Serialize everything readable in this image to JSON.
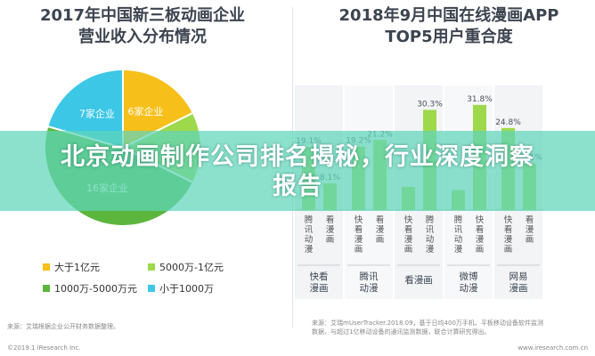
{
  "banner": {
    "line1": "北京动画制作公司排名揭秘，行业深度洞察",
    "line2": "报告"
  },
  "left_title": {
    "line1": "2017年中国新三板动画企业",
    "line2": "营业收入分布情况"
  },
  "right_title": {
    "line1": "2018年9月中国在线漫画APP",
    "line2": "TOP5用户重合度"
  },
  "colors": {
    "c1": "#f6bf1a",
    "c2": "#9ed84b",
    "c3": "#5cb63d",
    "c4": "#3cc7e6"
  },
  "chart_data": [
    {
      "type": "pie",
      "title": "2017年中国新三板动画企业营业收入分布情况",
      "slices": [
        {
          "name": "大于1亿元",
          "label": "6家企业",
          "value": 6,
          "color": "#f6bf1a"
        },
        {
          "name": "5000万-1亿元",
          "label": "",
          "value": 5,
          "color": "#9ed84b"
        },
        {
          "name": "1000万-5000万元",
          "label": "16家企业",
          "value": 16,
          "color": "#5cb63d"
        },
        {
          "name": "小于1000万",
          "label": "7家企业",
          "value": 7,
          "color": "#3cc7e6"
        }
      ],
      "legend": [
        "大于1亿元",
        "5000万-1亿元",
        "1000万-5000万元",
        "小于1000万"
      ],
      "legend_position": "bottom"
    },
    {
      "type": "bar",
      "title": "2018年9月中国在线漫画APP TOP5用户重合度",
      "groups": [
        {
          "name": "快看漫画",
          "bars": [
            {
              "label": "腾讯动漫",
              "value": 19.1,
              "color": "#9ed84b"
            },
            {
              "label": "看漫画",
              "value": 8.1,
              "color": "#9ed84b"
            }
          ]
        },
        {
          "name": "腾讯动漫",
          "bars": [
            {
              "label": "快看漫画",
              "value": 19.2,
              "color": "#9ed84b"
            },
            {
              "label": "看漫画",
              "value": 21.2,
              "color": "#9ed84b"
            }
          ]
        },
        {
          "name": "看漫画",
          "bars": [
            {
              "label": "快看漫画",
              "value": 7.0,
              "color": "#9ed84b"
            },
            {
              "label": "腾讯动漫",
              "value": 30.3,
              "color": "#9ed84b"
            }
          ]
        },
        {
          "name": "微博动漫",
          "bars": [
            {
              "label": "腾讯动漫",
              "value": 6.0,
              "color": "#9ed84b"
            },
            {
              "label": "快看漫画",
              "value": 31.8,
              "color": "#9ed84b"
            }
          ]
        },
        {
          "name": "网易漫画",
          "bars": [
            {
              "label": "快看漫画",
              "value": 24.8,
              "color": "#9ed84b"
            },
            {
              "label": "看漫画",
              "value": 14.1,
              "color": "#9ed84b"
            }
          ]
        }
      ],
      "value_labels": [
        "19.1%",
        "8.1%",
        "19.2%",
        "21.2%",
        "",
        "30.3%",
        "",
        "31.8%",
        "24.8%",
        "14.1%"
      ],
      "ylim": [
        0,
        35
      ]
    }
  ],
  "sources": {
    "left": "来源：艾瑞根据企业公开财务数据整理。",
    "right_line1": "来源：艾瑞mUserTracker.2018.09，基于日均400万手机、平板移动设备软件监测",
    "right_line2": "数据，与超过1亿移动设备的通讯监测数据，联合计算研究得出。",
    "copyright_left": "©2019.1 iResearch Inc.",
    "copyright_right": "www.iresearch.com.cn"
  }
}
